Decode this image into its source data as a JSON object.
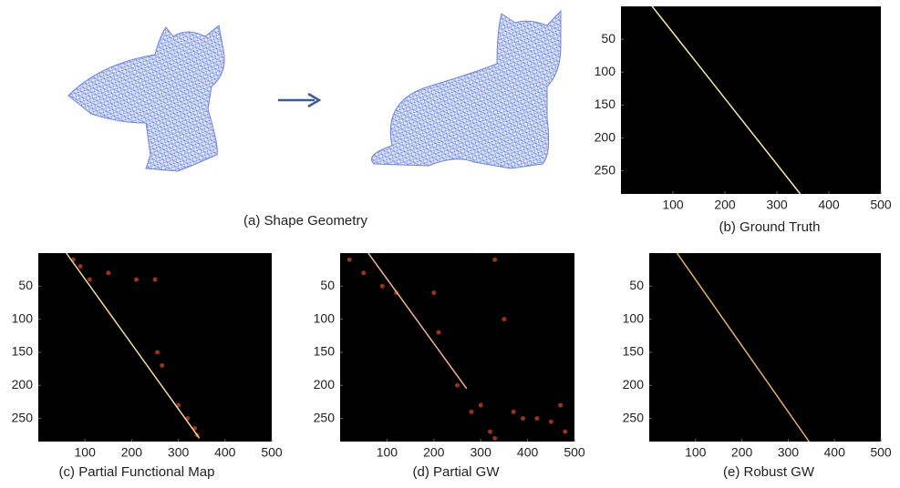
{
  "shape_geometry": {
    "caption": "(a) Shape Geometry"
  },
  "heatmaps": [
    {
      "type": "heatmap",
      "caption": "(b) Ground Truth",
      "xlim": [
        0,
        500
      ],
      "ylim": [
        0,
        285
      ],
      "xticks": [
        100,
        200,
        300,
        400,
        500
      ],
      "yticks": [
        50,
        100,
        150,
        200,
        250
      ],
      "color": "#f3e6a8",
      "diagonal": {
        "x": [
          60,
          345
        ],
        "y": [
          0,
          285
        ]
      }
    },
    {
      "type": "heatmap",
      "caption": "(c) Partial Functional Map",
      "xlim": [
        0,
        500
      ],
      "ylim": [
        0,
        285
      ],
      "xticks": [
        100,
        200,
        300,
        400,
        500
      ],
      "yticks": [
        50,
        100,
        150,
        200,
        250
      ],
      "color": "#f6d9a0",
      "diagonal": {
        "x": [
          60,
          345
        ],
        "y": [
          0,
          280
        ]
      },
      "hotspots": {
        "x": [
          75,
          90,
          110,
          150,
          210,
          250,
          255,
          265,
          300,
          320,
          335,
          340
        ],
        "y": [
          10,
          20,
          40,
          30,
          40,
          40,
          150,
          170,
          230,
          250,
          265,
          275
        ]
      }
    },
    {
      "type": "heatmap",
      "caption": "(d) Partial GW",
      "xlim": [
        0,
        500
      ],
      "ylim": [
        0,
        285
      ],
      "xticks": [
        100,
        200,
        300,
        400,
        500
      ],
      "yticks": [
        50,
        100,
        150,
        200,
        250
      ],
      "color": "#f0b090",
      "diagonal": {
        "x": [
          60,
          270
        ],
        "y": [
          0,
          205
        ]
      },
      "hotspots": {
        "x": [
          20,
          50,
          90,
          120,
          200,
          210,
          330,
          350,
          300,
          320,
          370,
          390,
          420,
          450,
          480,
          470,
          250,
          280,
          330
        ],
        "y": [
          10,
          30,
          50,
          60,
          60,
          120,
          10,
          100,
          230,
          270,
          240,
          250,
          250,
          255,
          270,
          230,
          200,
          240,
          280
        ]
      }
    },
    {
      "type": "heatmap",
      "caption": "(e) Robust GW",
      "xlim": [
        0,
        500
      ],
      "ylim": [
        0,
        285
      ],
      "xticks": [
        100,
        200,
        300,
        400,
        500
      ],
      "yticks": [
        50,
        100,
        150,
        200,
        250
      ],
      "color": "#e8b070",
      "diagonal": {
        "x": [
          60,
          345
        ],
        "y": [
          0,
          285
        ]
      }
    }
  ]
}
